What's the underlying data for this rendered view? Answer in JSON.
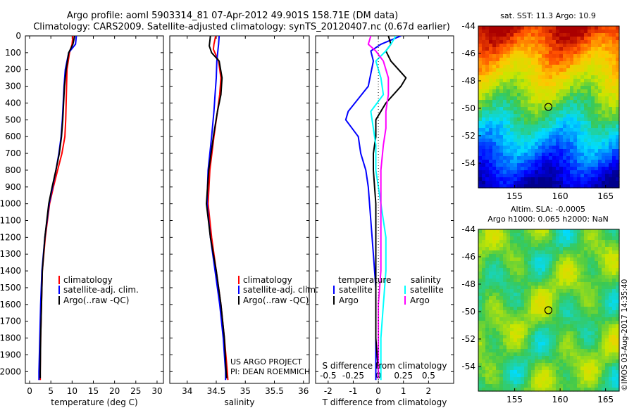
{
  "header": {
    "title_line1": "Argo profile: aoml 5903314_81 07-Apr-2012 49.901S 158.71E (DM data)",
    "title_line2": "Climatology: CARS2009. Satellite-adjusted climatology: synTS_20120407.nc (0.67d earlier)"
  },
  "colors": {
    "climatology": "#ff0000",
    "satellite": "#0000ff",
    "argo": "#000000",
    "salinity_satellite": "#00ffff",
    "salinity_argo": "#ff00ff"
  },
  "chart_data": [
    {
      "type": "line",
      "id": "temperature",
      "xlabel": "temperature (deg C)",
      "xlim": [
        -1,
        31.5
      ],
      "xticks": [
        0,
        5,
        10,
        15,
        20,
        25,
        30
      ],
      "ylim": [
        2070,
        0
      ],
      "yticks": [
        0,
        100,
        200,
        300,
        400,
        500,
        600,
        700,
        800,
        900,
        1000,
        1100,
        1200,
        1300,
        1400,
        1500,
        1600,
        1700,
        1800,
        1900,
        2000
      ],
      "legend": [
        "climatology",
        "satellite-adj. clim.",
        "Argo(..raw -QC)"
      ],
      "series": [
        {
          "name": "climatology",
          "color": "#ff0000",
          "depth": [
            0,
            50,
            100,
            200,
            300,
            400,
            500,
            600,
            700,
            800,
            900,
            1000,
            1200,
            1400,
            1600,
            1800,
            2000,
            2050
          ],
          "values": [
            10.2,
            10.0,
            9.4,
            8.8,
            8.7,
            8.6,
            8.5,
            8.3,
            7.6,
            6.6,
            5.6,
            4.7,
            3.7,
            3.0,
            2.8,
            2.6,
            2.5,
            2.5
          ]
        },
        {
          "name": "satellite-adj. clim.",
          "color": "#0000ff",
          "depth": [
            0,
            50,
            100,
            200,
            300,
            400,
            500,
            600,
            700,
            800,
            900,
            1000,
            1200,
            1400,
            1600,
            1800,
            2000,
            2050
          ],
          "values": [
            11.0,
            10.8,
            9.2,
            8.4,
            8.1,
            7.9,
            7.7,
            7.4,
            6.9,
            6.2,
            5.4,
            4.6,
            3.6,
            2.9,
            2.6,
            2.4,
            2.2,
            2.2
          ]
        },
        {
          "name": "Argo(..raw -QC)",
          "color": "#000000",
          "depth": [
            0,
            50,
            100,
            200,
            300,
            400,
            500,
            600,
            700,
            800,
            900,
            1000,
            1200,
            1400,
            1600,
            1800,
            2000,
            2040
          ],
          "values": [
            10.6,
            10.2,
            9.2,
            8.6,
            8.2,
            8.0,
            7.8,
            7.5,
            7.0,
            6.2,
            5.3,
            4.5,
            3.6,
            3.0,
            2.8,
            2.6,
            2.5,
            2.5
          ]
        }
      ]
    },
    {
      "type": "line",
      "id": "salinity",
      "xlabel": "salinity",
      "xlim": [
        33.7,
        36.1
      ],
      "xticks": [
        34,
        34.5,
        35,
        35.5,
        36
      ],
      "ylim": [
        2070,
        0
      ],
      "legend": [
        "climatology",
        "satellite-adj. clim.",
        "Argo(..raw -QC)"
      ],
      "annotation": [
        "US ARGO PROJECT",
        "PI: DEAN ROEMMICH"
      ],
      "series": [
        {
          "name": "climatology",
          "color": "#ff0000",
          "depth": [
            0,
            50,
            80,
            150,
            250,
            350,
            450,
            600,
            800,
            1000,
            1200,
            1400,
            1600,
            1800,
            2000,
            2050
          ],
          "values": [
            34.49,
            34.46,
            34.45,
            34.54,
            34.58,
            34.56,
            34.52,
            34.46,
            34.39,
            34.36,
            34.42,
            34.5,
            34.58,
            34.64,
            34.69,
            34.7
          ]
        },
        {
          "name": "satellite-adj. clim.",
          "color": "#0000ff",
          "depth": [
            0,
            50,
            80,
            150,
            250,
            350,
            450,
            600,
            800,
            1000,
            1200,
            1400,
            1600,
            1800,
            2000,
            2050
          ],
          "values": [
            34.55,
            34.54,
            34.53,
            34.51,
            34.5,
            34.48,
            34.46,
            34.42,
            34.36,
            34.34,
            34.4,
            34.48,
            34.56,
            34.62,
            34.66,
            34.66
          ]
        },
        {
          "name": "Argo(..raw -QC)",
          "color": "#000000",
          "depth": [
            0,
            60,
            100,
            150,
            250,
            350,
            450,
            600,
            800,
            1000,
            1200,
            1400,
            1600,
            1800,
            2000,
            2040
          ],
          "values": [
            34.4,
            34.38,
            34.42,
            34.55,
            34.6,
            34.58,
            34.52,
            34.45,
            34.37,
            34.33,
            34.4,
            34.5,
            34.58,
            34.64,
            34.67,
            34.68
          ]
        }
      ]
    },
    {
      "type": "line",
      "id": "difference",
      "xlabel": "T difference from climatology",
      "x2label": "S difference from climatology",
      "xlim": [
        -2.5,
        3.0
      ],
      "xticks": [
        -2,
        -1,
        0,
        1,
        2
      ],
      "x2ticks": [
        "-0.5",
        "-0.25",
        "0",
        "0.25",
        "0.5"
      ],
      "x2tick_values": [
        -2,
        -1,
        0,
        1,
        2
      ],
      "ylim": [
        2070,
        0
      ],
      "legend_titles": [
        "temperature",
        "salinity"
      ],
      "legend": [
        "satellite",
        "Argo",
        "satellite",
        "Argo"
      ],
      "series": [
        {
          "name": "satellite",
          "group": "temperature",
          "color": "#0000ff",
          "depth": [
            0,
            50,
            90,
            150,
            300,
            450,
            500,
            600,
            700,
            800,
            900,
            1100,
            1300,
            1500,
            1700,
            1900,
            2000,
            2050
          ],
          "values": [
            0.9,
            0.1,
            -0.3,
            -0.2,
            -0.4,
            -1.2,
            -1.3,
            -0.8,
            -0.7,
            -0.5,
            -0.4,
            -0.3,
            -0.2,
            -0.1,
            -0.1,
            -0.1,
            -0.1,
            -0.1
          ]
        },
        {
          "name": "Argo",
          "group": "temperature",
          "color": "#000000",
          "depth": [
            0,
            50,
            90,
            150,
            250,
            300,
            400,
            500,
            600,
            700,
            800,
            1000,
            1200,
            1400,
            1600,
            1800,
            2000,
            2030
          ],
          "values": [
            0.4,
            0.5,
            0.3,
            0.5,
            1.1,
            0.9,
            0.3,
            -0.1,
            -0.1,
            -0.2,
            -0.2,
            -0.1,
            -0.1,
            -0.1,
            -0.1,
            -0.1,
            0.0,
            0.0
          ]
        },
        {
          "name": "satellite",
          "group": "salinity",
          "color": "#00ffff",
          "depth": [
            0,
            50,
            90,
            150,
            250,
            350,
            450,
            550,
            650,
            800,
            1000,
            1200,
            1400,
            1600,
            1800,
            2000,
            2050
          ],
          "values": [
            0.7,
            0.5,
            0.3,
            -0.1,
            0.1,
            0.2,
            -0.3,
            -0.2,
            -0.1,
            -0.1,
            0.1,
            0.3,
            0.3,
            0.2,
            0.1,
            0.1,
            0.1
          ]
        },
        {
          "name": "Argo",
          "group": "salinity",
          "color": "#ff00ff",
          "depth": [
            0,
            50,
            90,
            150,
            250,
            350,
            450,
            550,
            650,
            800,
            1000,
            1200,
            1400,
            1600,
            1800,
            2000,
            2040
          ],
          "values": [
            -0.3,
            -0.4,
            -0.1,
            0.2,
            0.4,
            0.4,
            0.3,
            0.3,
            0.2,
            0.1,
            0.1,
            0.1,
            0.1,
            0.0,
            0.0,
            0.0,
            0.0
          ]
        }
      ]
    },
    {
      "type": "heatmap",
      "id": "sst_map",
      "title": "sat. SST: 11.3 Argo: 10.9",
      "xlim": [
        151,
        166.5
      ],
      "ylim": [
        -55.8,
        -44
      ],
      "xticks": [
        155,
        160,
        165
      ],
      "yticks": [
        -44,
        -46,
        -48,
        -50,
        -52,
        -54
      ],
      "profile_location": {
        "lon": 158.71,
        "lat": -49.901
      }
    },
    {
      "type": "heatmap",
      "id": "sla_map",
      "title_line1": "Altim. SLA: -0.0005",
      "title_line2": "Argo h1000: 0.065 h2000: NaN",
      "xlim": [
        151,
        166.5
      ],
      "ylim": [
        -55.8,
        -44
      ],
      "xticks": [
        155,
        160,
        165
      ],
      "yticks": [
        -44,
        -46,
        -48,
        -50,
        -52,
        -54
      ],
      "profile_location": {
        "lon": 158.71,
        "lat": -49.901
      }
    }
  ],
  "watermark": "©IMOS 03-Aug-2017 14:35:40"
}
